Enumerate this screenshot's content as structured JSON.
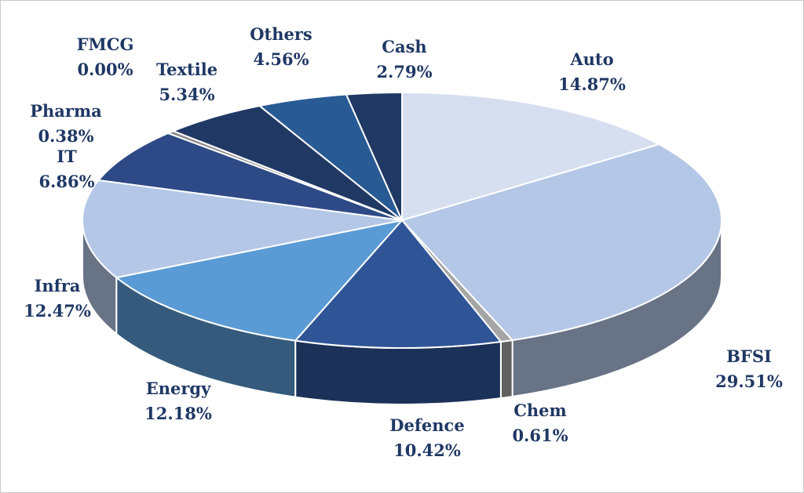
{
  "chart_data": {
    "type": "pie",
    "title": "",
    "legend": "none",
    "slices": [
      {
        "name": "Auto",
        "value": 14.87,
        "label": "14.87%",
        "color": "#d6dff0"
      },
      {
        "name": "BFSI",
        "value": 29.51,
        "label": "29.51%",
        "color": "#b4c7e7"
      },
      {
        "name": "Chem",
        "value": 0.61,
        "label": "0.61%",
        "color": "#a5a5a5"
      },
      {
        "name": "Defence",
        "value": 10.42,
        "label": "10.42%",
        "color": "#2f5597"
      },
      {
        "name": "Energy",
        "value": 12.18,
        "label": "12.18%",
        "color": "#5b9bd5"
      },
      {
        "name": "Infra",
        "value": 12.47,
        "label": "12.47%",
        "color": "#b4c7e7"
      },
      {
        "name": "IT",
        "value": 6.86,
        "label": "6.86%",
        "color": "#2e4a86"
      },
      {
        "name": "Pharma",
        "value": 0.38,
        "label": "0.38%",
        "color": "#8a8a8a"
      },
      {
        "name": "FMCG",
        "value": 0.0,
        "label": "0.00%",
        "color": "#1f3864"
      },
      {
        "name": "Textile",
        "value": 5.34,
        "label": "5.34%",
        "color": "#203864"
      },
      {
        "name": "Others",
        "value": 4.56,
        "label": "4.56%",
        "color": "#285a94"
      },
      {
        "name": "Cash",
        "value": 2.79,
        "label": "2.79%",
        "color": "#1f3864"
      }
    ]
  }
}
